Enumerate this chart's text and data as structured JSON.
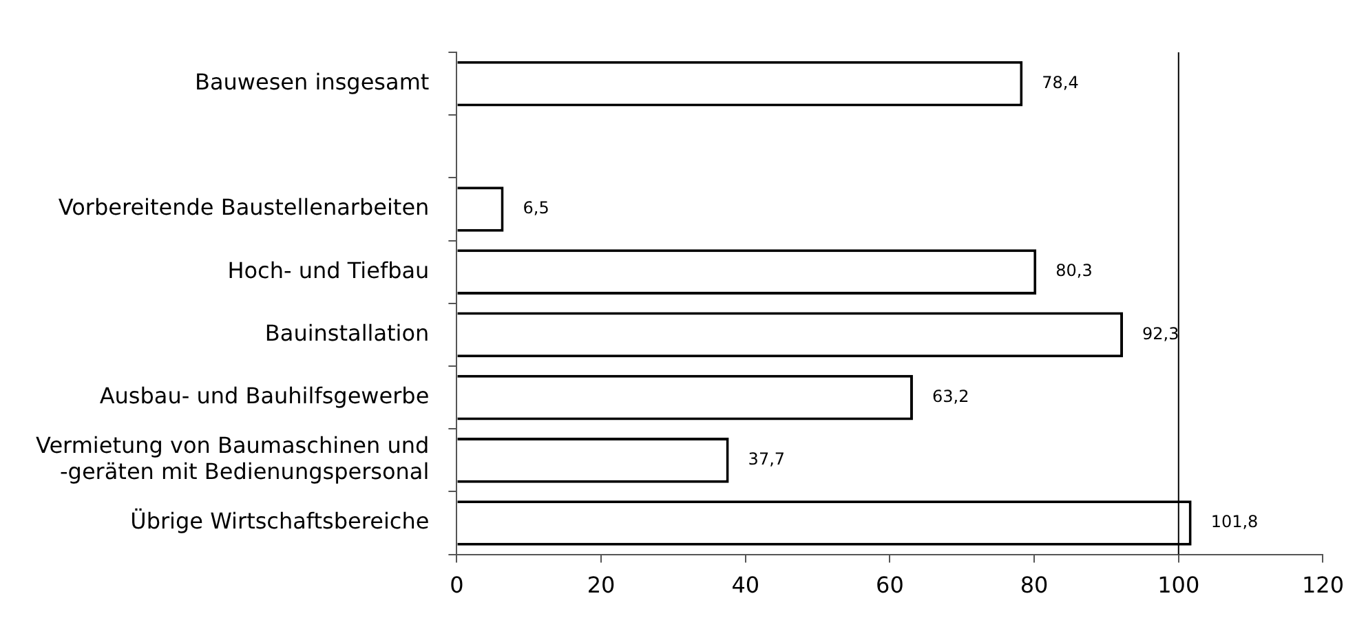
{
  "chart_data": {
    "type": "bar",
    "orientation": "horizontal",
    "categories": [
      "Bauwesen insgesamt",
      null,
      "Vorbereitende Baustellenarbeiten",
      "Hoch- und Tiefbau",
      "Bauinstallation",
      "Ausbau- und Bauhilfsgewerbe",
      "Vermietung von Baumaschinen und -geräten mit Bedienungspersonal",
      "Übrige Wirtschaftsbereiche"
    ],
    "values": [
      78.4,
      null,
      6.5,
      80.3,
      92.3,
      63.2,
      37.7,
      101.8
    ],
    "value_labels": [
      "78,4",
      null,
      "6,5",
      "80,3",
      "92,3",
      "63,2",
      "37,7",
      "101,8"
    ],
    "color": "#ffffff",
    "xlim": [
      0,
      120
    ],
    "xticks": [
      0,
      20,
      40,
      60,
      80,
      100,
      120
    ],
    "ref_lines": [
      {
        "axis": "x",
        "value": 100,
        "color": "#000000"
      }
    ],
    "grid": false,
    "legend": false
  }
}
